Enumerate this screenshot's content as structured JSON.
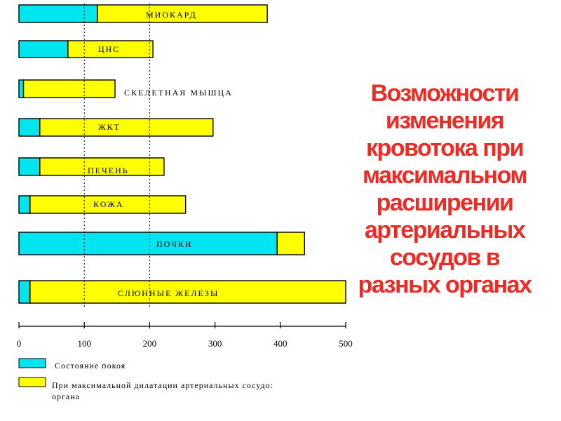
{
  "chart_data": {
    "type": "bar",
    "stacked": true,
    "orientation": "horizontal",
    "categories": [
      "МИОКАРД",
      "ЦНС",
      "СКЕЛЕТНАЯ   МЫШЦА",
      "ЖКТ",
      "ПЕЧЕНЬ",
      "КОЖА",
      "ПОЧКИ",
      "СЛЮННЫЕ  ЖЕЛЕЗЫ"
    ],
    "series": [
      {
        "name": "Состояние покоя",
        "color": "#00e5ee",
        "values": [
          120,
          75,
          7,
          32,
          32,
          17,
          395,
          17
        ]
      },
      {
        "name": "При максимальной дилатации артериальных сосудов органа",
        "color": "#ffff00",
        "values": [
          260,
          130,
          140,
          265,
          190,
          238,
          42,
          483
        ]
      }
    ],
    "xlim": [
      0,
      500
    ],
    "xticks": [
      "0",
      "100",
      "200",
      "300",
      "400",
      "500"
    ],
    "grid": {
      "dotted_reference_lines": [
        100,
        200
      ]
    },
    "legend_position": "bottom-left",
    "legend": [
      {
        "label": "Состояние покоя"
      },
      {
        "label_line1": "При максимальной дилатации артериальных сосудо:",
        "label_line2": "органа"
      }
    ],
    "title_lines": [
      "Возможности",
      "изменения",
      "кровотока при",
      "максимальном",
      "расширении",
      "артериальных",
      "сосудов  в",
      "разных органах"
    ],
    "title_color": "#ee2a25"
  }
}
